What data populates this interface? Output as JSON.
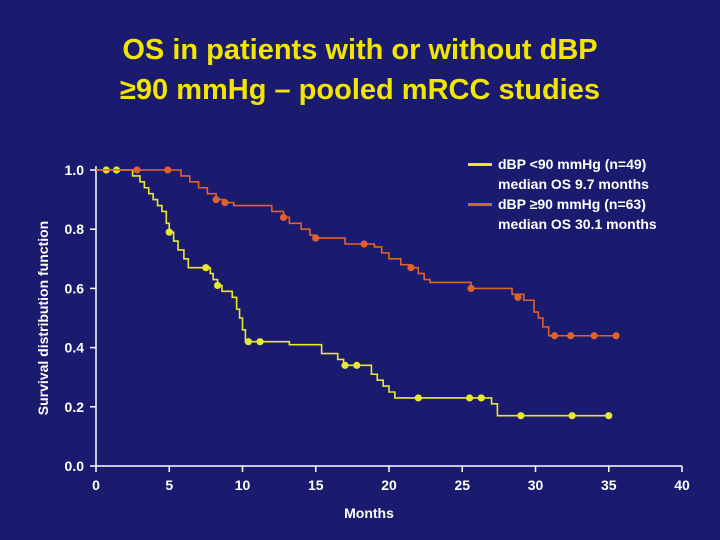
{
  "title": {
    "line1": "OS in patients with or without dBP",
    "line2": "≥90 mmHg – pooled mRCC studies"
  },
  "colors": {
    "background": "#1a1a6e",
    "title": "#f2e600",
    "series_low": "#e8e830",
    "series_high": "#e0622a",
    "axis": "#ffffff"
  },
  "legend": [
    {
      "label": "dBP <90 mmHg (n=49)",
      "sub": "median OS 9.7 months",
      "color": "#e8e830"
    },
    {
      "label": "dBP ≥90 mmHg (n=63)",
      "sub": "median OS 30.1 months",
      "color": "#e0622a"
    }
  ],
  "chart_data": {
    "type": "line",
    "step": true,
    "title": "OS in patients with or without dBP ≥90 mmHg – pooled mRCC studies",
    "xlabel": "Months",
    "ylabel": "Survival distribution function",
    "xlim": [
      0,
      40
    ],
    "ylim": [
      0,
      1.0
    ],
    "xticks": [
      0,
      5,
      10,
      15,
      20,
      25,
      30,
      35,
      40
    ],
    "yticks": [
      0.0,
      0.2,
      0.4,
      0.6,
      0.8,
      1.0
    ],
    "ytick_labels": [
      "0.0",
      "0.2",
      "0.4",
      "0.6",
      "0.8",
      "1.0"
    ],
    "series": [
      {
        "name": "dBP <90 mmHg (n=49)",
        "color": "#e8e830",
        "steps": [
          [
            0,
            1.0
          ],
          [
            1.8,
            1.0
          ],
          [
            2.5,
            0.98
          ],
          [
            3.0,
            0.96
          ],
          [
            3.3,
            0.94
          ],
          [
            3.6,
            0.92
          ],
          [
            3.9,
            0.9
          ],
          [
            4.2,
            0.88
          ],
          [
            4.5,
            0.86
          ],
          [
            4.8,
            0.82
          ],
          [
            5.0,
            0.79
          ],
          [
            5.3,
            0.76
          ],
          [
            5.6,
            0.73
          ],
          [
            6.0,
            0.7
          ],
          [
            6.3,
            0.67
          ],
          [
            7.5,
            0.67
          ],
          [
            7.8,
            0.65
          ],
          [
            8.0,
            0.63
          ],
          [
            8.3,
            0.61
          ],
          [
            8.6,
            0.59
          ],
          [
            9.3,
            0.57
          ],
          [
            9.6,
            0.53
          ],
          [
            9.8,
            0.5
          ],
          [
            10.0,
            0.46
          ],
          [
            10.2,
            0.42
          ],
          [
            13.0,
            0.42
          ],
          [
            13.2,
            0.41
          ],
          [
            15.0,
            0.41
          ],
          [
            15.4,
            0.38
          ],
          [
            16.5,
            0.36
          ],
          [
            16.9,
            0.34
          ],
          [
            18.5,
            0.34
          ],
          [
            18.8,
            0.31
          ],
          [
            19.2,
            0.29
          ],
          [
            19.6,
            0.27
          ],
          [
            20.0,
            0.25
          ],
          [
            20.4,
            0.23
          ],
          [
            26.5,
            0.23
          ],
          [
            27.0,
            0.21
          ],
          [
            27.4,
            0.17
          ],
          [
            35,
            0.17
          ]
        ],
        "censored": [
          [
            0.7,
            1.0
          ],
          [
            1.4,
            1.0
          ],
          [
            5.0,
            0.79
          ],
          [
            7.5,
            0.67
          ],
          [
            8.3,
            0.61
          ],
          [
            10.4,
            0.42
          ],
          [
            11.2,
            0.42
          ],
          [
            17.0,
            0.34
          ],
          [
            17.8,
            0.34
          ],
          [
            22.0,
            0.23
          ],
          [
            25.5,
            0.23
          ],
          [
            26.3,
            0.23
          ],
          [
            29.0,
            0.17
          ],
          [
            32.5,
            0.17
          ],
          [
            35,
            0.17
          ]
        ]
      },
      {
        "name": "dBP ≥90 mmHg (n=63)",
        "color": "#e0622a",
        "steps": [
          [
            0,
            1.0
          ],
          [
            5.2,
            1.0
          ],
          [
            5.8,
            0.98
          ],
          [
            6.4,
            0.96
          ],
          [
            7.0,
            0.94
          ],
          [
            7.6,
            0.92
          ],
          [
            8.2,
            0.9
          ],
          [
            8.8,
            0.89
          ],
          [
            9.4,
            0.88
          ],
          [
            11.5,
            0.88
          ],
          [
            12.0,
            0.86
          ],
          [
            12.8,
            0.84
          ],
          [
            13.2,
            0.82
          ],
          [
            14.0,
            0.8
          ],
          [
            14.6,
            0.78
          ],
          [
            15.0,
            0.77
          ],
          [
            16.5,
            0.77
          ],
          [
            17.0,
            0.75
          ],
          [
            18.3,
            0.75
          ],
          [
            19.0,
            0.74
          ],
          [
            19.5,
            0.72
          ],
          [
            20.0,
            0.7
          ],
          [
            20.8,
            0.68
          ],
          [
            21.5,
            0.67
          ],
          [
            22.0,
            0.65
          ],
          [
            22.4,
            0.63
          ],
          [
            22.8,
            0.62
          ],
          [
            25.0,
            0.62
          ],
          [
            25.6,
            0.6
          ],
          [
            28.4,
            0.58
          ],
          [
            29.2,
            0.56
          ],
          [
            29.9,
            0.52
          ],
          [
            30.2,
            0.5
          ],
          [
            30.5,
            0.47
          ],
          [
            30.9,
            0.44
          ],
          [
            35.5,
            0.44
          ]
        ],
        "censored": [
          [
            2.8,
            1.0
          ],
          [
            4.9,
            1.0
          ],
          [
            8.2,
            0.9
          ],
          [
            8.8,
            0.89
          ],
          [
            12.8,
            0.84
          ],
          [
            15.0,
            0.77
          ],
          [
            18.3,
            0.75
          ],
          [
            21.5,
            0.67
          ],
          [
            25.6,
            0.6
          ],
          [
            28.8,
            0.57
          ],
          [
            31.3,
            0.44
          ],
          [
            32.4,
            0.44
          ],
          [
            34.0,
            0.44
          ],
          [
            35.5,
            0.44
          ]
        ]
      }
    ]
  }
}
